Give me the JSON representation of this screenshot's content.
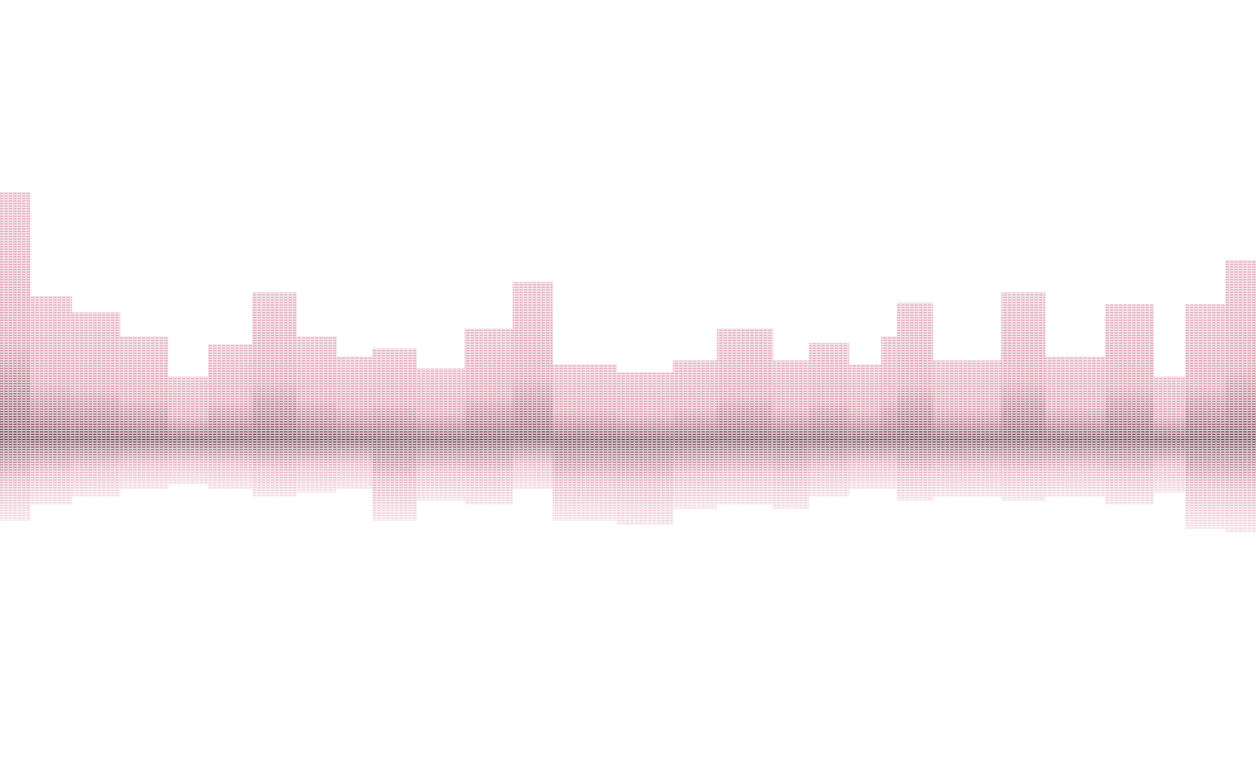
{
  "chart_data": {
    "type": "skyline",
    "tick_labels": false,
    "grid": false,
    "color": "#d4809a",
    "xlim": [
      0,
      1568
    ],
    "ylim": [
      -400,
      550
    ],
    "buildings": {
      "x0": [
        0,
        38,
        90,
        150,
        210,
        260,
        315,
        370,
        420,
        465,
        520,
        580,
        640,
        690,
        770,
        840,
        895,
        965,
        1010,
        1060,
        1100,
        1120,
        1165,
        1250,
        1305,
        1380,
        1440,
        1480,
        1530
      ],
      "x1": [
        38,
        90,
        150,
        210,
        260,
        315,
        370,
        420,
        465,
        520,
        580,
        640,
        690,
        770,
        840,
        895,
        965,
        1010,
        1060,
        1100,
        1120,
        1165,
        1250,
        1305,
        1380,
        1440,
        1480,
        1530,
        1568
      ],
      "values": [
        310,
        180,
        160,
        130,
        80,
        120,
        185,
        130,
        105,
        115,
        90,
        140,
        198,
        95,
        85,
        100,
        140,
        100,
        122,
        95,
        130,
        172,
        100,
        185,
        105,
        170,
        80,
        170,
        225
      ],
      "reflection": [
        100,
        80,
        70,
        60,
        55,
        60,
        70,
        65,
        60,
        100,
        75,
        80,
        60,
        100,
        105,
        85,
        80,
        85,
        70,
        60,
        60,
        75,
        70,
        75,
        70,
        80,
        65,
        110,
        115
      ]
    }
  }
}
